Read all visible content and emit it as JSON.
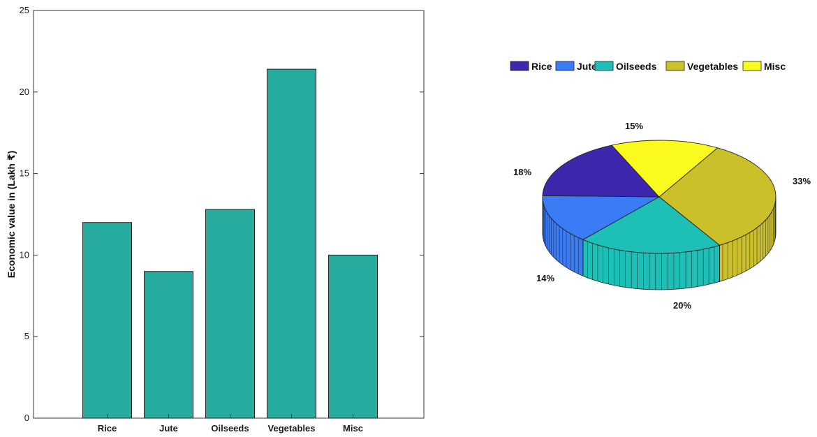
{
  "chart_data": [
    {
      "type": "bar",
      "categories": [
        "Rice",
        "Jute",
        "Oilseeds",
        "Vegetables",
        "Misc"
      ],
      "values": [
        12,
        9,
        12.8,
        21.4,
        10
      ],
      "ylabel": "Economic value in (Lakh ₹)",
      "ylim": [
        0,
        25
      ],
      "yticks": [
        0,
        5,
        10,
        15,
        20,
        25
      ],
      "bar_color": "#26ab9e",
      "grid": false
    },
    {
      "type": "pie",
      "style": "3d",
      "labels": [
        "Rice",
        "Jute",
        "Oilseeds",
        "Vegetables",
        "Misc"
      ],
      "percent_labels": [
        "18%",
        "14%",
        "20%",
        "33%",
        "15%"
      ],
      "values": [
        18,
        14,
        20,
        33,
        15
      ],
      "colors": [
        "#3d28ad",
        "#3a7cf5",
        "#1ebfb6",
        "#ccc02a",
        "#fafa1e"
      ],
      "legend_position": "top"
    }
  ]
}
